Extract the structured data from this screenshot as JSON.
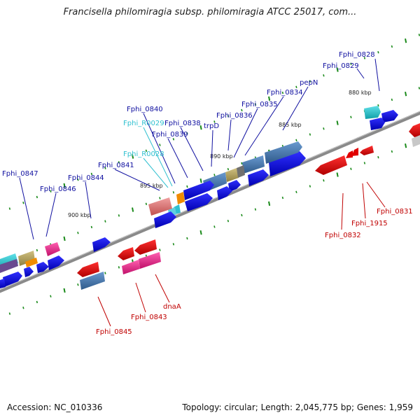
{
  "title": "Francisella philomiragia subsp. philomiragia ATCC 25017, com...",
  "footer": {
    "accession": "Accession: NC_010336",
    "topology": "Topology: circular; Length: 2,045,775 bp; Genes: 1,959"
  },
  "kbp_labels": [
    "880 kbp",
    "885 kbp",
    "890 kbp",
    "895 kbp",
    "900 kbp"
  ],
  "colors": {
    "forward_gene": "#1010e0",
    "reverse_gene": "#e00000",
    "steelblue_gene": "#4a7ab0",
    "cyan_gene": "#20c0c8",
    "pink_gene": "#e8208a",
    "salmon_gene": "#e07070",
    "tan_gene": "#b0a060",
    "orange_gene": "#f08c00",
    "backbone": "#888888",
    "tick": "#1a8a1a",
    "label_blue": "#1010a0",
    "label_cyan": "#30c0d0",
    "label_red": "#c00000"
  },
  "genes_top": [
    "Fphi_0828",
    "Fphi_0829",
    "pepN",
    "Fphi_0834",
    "Fphi_0835",
    "Fphi_0836",
    "trpD",
    "Fphi_0838",
    "Fphi_0839",
    "Fphi_0840",
    "Fphi_R0029",
    "Fphi_R0028",
    "Fphi_0841",
    "Fphi_0844",
    "Fphi_0846",
    "Fphi_0847"
  ],
  "genes_bottom": [
    "Fphi_0831",
    "Fphi_1915",
    "Fphi_0832",
    "dnaA",
    "Fphi_0843",
    "Fphi_0845"
  ]
}
